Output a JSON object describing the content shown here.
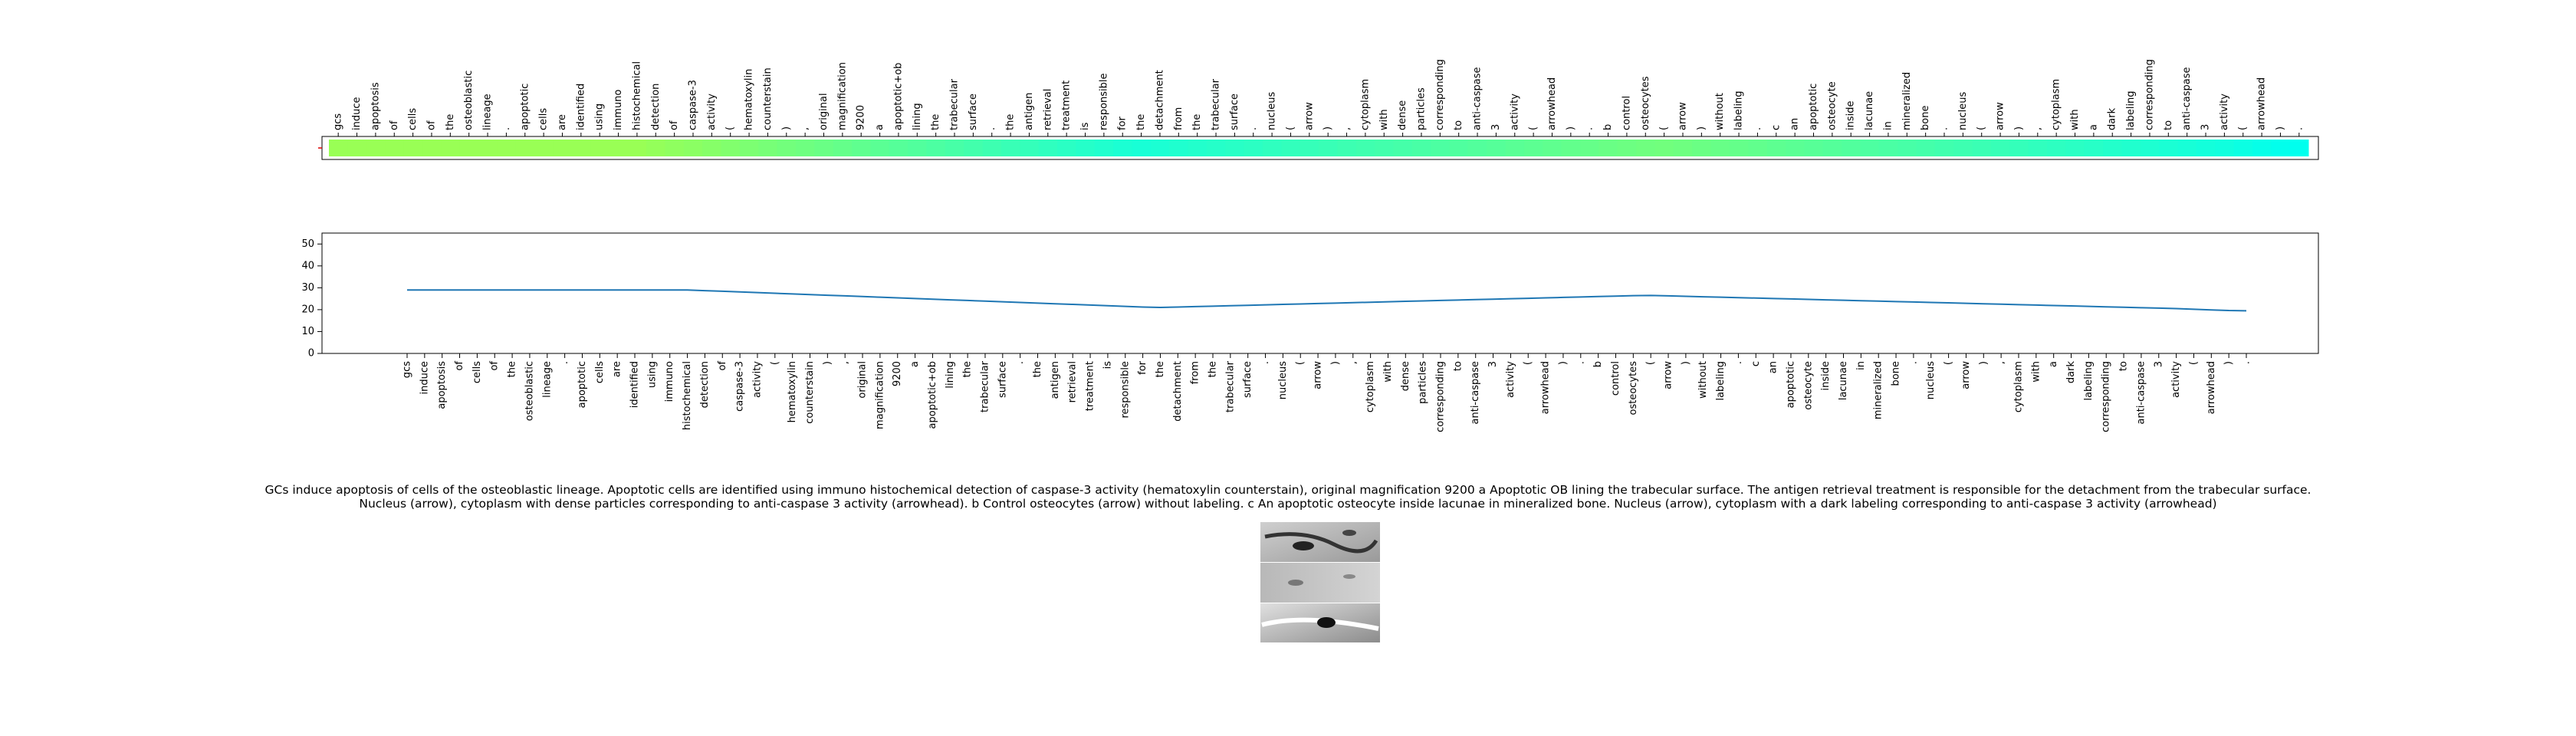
{
  "chart_data": {
    "type": "line",
    "categories": [
      "gcs",
      "induce",
      "apoptosis",
      "of",
      "cells",
      "of",
      "the",
      "osteoblastic",
      "lineage",
      ".",
      "apoptotic",
      "cells",
      "are",
      "identified",
      "using",
      "immuno",
      "histochemical",
      "detection",
      "of",
      "caspase-3",
      "activity",
      "(",
      "hematoxylin",
      "counterstain",
      ")",
      ",",
      "original",
      "magnification",
      "9200",
      "a",
      "apoptotic+ob",
      "lining",
      "the",
      "trabecular",
      "surface",
      ".",
      "the",
      "antigen",
      "retrieval",
      "treatment",
      "is",
      "responsible",
      "for",
      "the",
      "detachment",
      "from",
      "the",
      "trabecular",
      "surface",
      ".",
      "nucleus",
      "(",
      "arrow",
      ")",
      ",",
      "cytoplasm",
      "with",
      "dense",
      "particles",
      "corresponding",
      "to",
      "anti-caspase",
      "3",
      "activity",
      "(",
      "arrowhead",
      ")",
      ".",
      "b",
      "control",
      "osteocytes",
      "(",
      "arrow",
      ")",
      "without",
      "labeling",
      ".",
      "c",
      "an",
      "apoptotic",
      "osteocyte",
      "inside",
      "lacunae",
      "in",
      "mineralized",
      "bone",
      ".",
      "nucleus",
      "(",
      "arrow",
      ")",
      ",",
      "cytoplasm",
      "with",
      "a",
      "dark",
      "labeling",
      "corresponding",
      "to",
      "anti-caspase",
      "3",
      "activity",
      "(",
      "arrowhead",
      ")",
      "."
    ],
    "values": [
      29,
      29,
      29,
      29,
      29,
      29,
      29,
      29,
      29,
      29,
      29,
      29,
      29,
      29,
      29,
      29,
      29,
      28.7,
      28.4,
      28.1,
      27.8,
      27.5,
      27.2,
      26.9,
      26.6,
      26.3,
      26,
      25.7,
      25.4,
      25.1,
      24.8,
      24.5,
      24.2,
      23.9,
      23.6,
      23.3,
      23,
      22.7,
      22.4,
      22.1,
      21.8,
      21.5,
      21.2,
      21,
      21.2,
      21.4,
      21.6,
      21.8,
      22,
      22.2,
      22.4,
      22.6,
      22.8,
      23,
      23.2,
      23.4,
      23.6,
      23.8,
      24,
      24.2,
      24.4,
      24.6,
      24.8,
      25,
      25.2,
      25.4,
      25.6,
      25.8,
      26,
      26.2,
      26.4,
      26.5,
      26.3,
      26.1,
      25.9,
      25.7,
      25.5,
      25.3,
      25.1,
      24.9,
      24.7,
      24.5,
      24.3,
      24.1,
      23.9,
      23.7,
      23.5,
      23.3,
      23.1,
      22.9,
      22.7,
      22.5,
      22.3,
      22.1,
      21.9,
      21.7,
      21.5,
      21.3,
      21.1,
      20.9,
      20.7,
      20.5,
      20.2,
      19.9,
      19.6,
      19.5
    ],
    "color": "#1f77b4",
    "heatmap_colors": [
      "#00ffee",
      "#99ff55"
    ],
    "ylim": [
      0,
      55
    ],
    "yticks": [
      0,
      10,
      20,
      30,
      40,
      50
    ]
  },
  "caption": "GCs induce apoptosis of cells of the osteoblastic lineage. Apoptotic cells are identified using immuno histochemical detection of caspase-3 activity (hematoxylin counterstain), original magnification 9200 a Apoptotic OB lining the trabecular surface. The antigen retrieval treatment is responsible for the detachment from the trabecular surface. Nucleus (arrow), cytoplasm with dense particles corresponding to anti-caspase 3 activity (arrowhead). b Control osteocytes (arrow) without labeling. c An apoptotic osteocyte inside lacunae in mineralized bone. Nucleus (arrow), cytoplasm with a dark labeling corresponding to anti-caspase 3 activity (arrowhead)"
}
